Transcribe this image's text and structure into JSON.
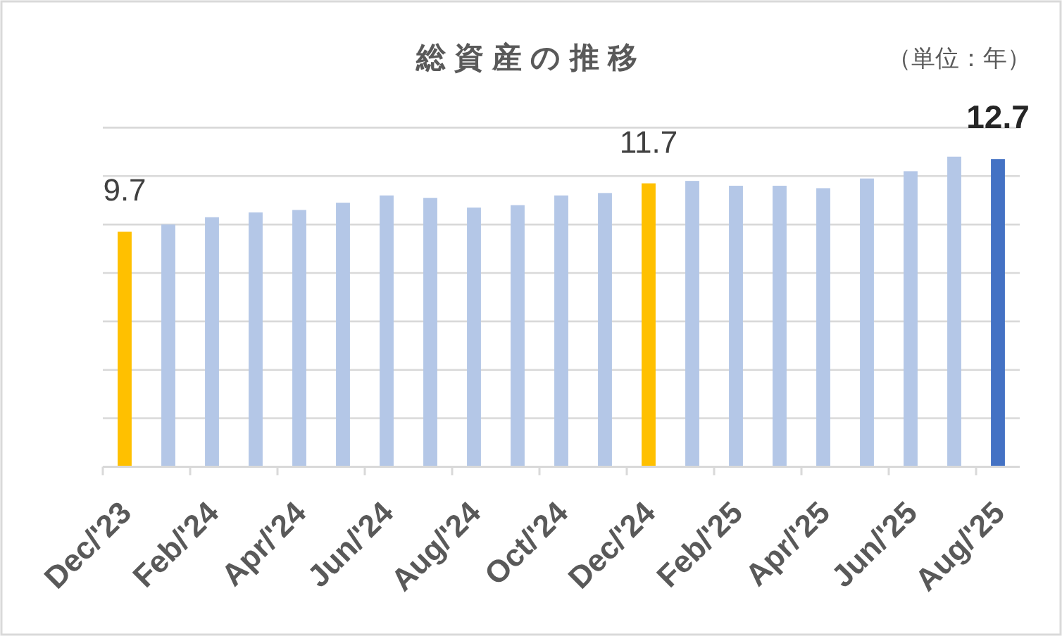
{
  "chart_data": {
    "type": "bar",
    "title": "総資産の推移",
    "annotations": [
      "（単位：年）"
    ],
    "categories": [
      "Dec/'23",
      null,
      "Feb/'24",
      null,
      "Apr/'24",
      null,
      "Jun/'24",
      null,
      "Aug/'24",
      null,
      "Oct/'24",
      null,
      "Dec/'24",
      null,
      "Feb/'25",
      null,
      "Apr/'25",
      null,
      "Jun/'25",
      null,
      "Aug/'25"
    ],
    "values": [
      9.7,
      10.0,
      10.3,
      10.5,
      10.6,
      10.9,
      11.2,
      11.1,
      10.7,
      10.8,
      11.2,
      11.3,
      11.7,
      11.8,
      11.6,
      11.6,
      11.5,
      11.9,
      12.2,
      12.8,
      12.7
    ],
    "colors": [
      "#ffc000",
      "#b4c7e7",
      "#b4c7e7",
      "#b4c7e7",
      "#b4c7e7",
      "#b4c7e7",
      "#b4c7e7",
      "#b4c7e7",
      "#b4c7e7",
      "#b4c7e7",
      "#b4c7e7",
      "#b4c7e7",
      "#ffc000",
      "#b4c7e7",
      "#b4c7e7",
      "#b4c7e7",
      "#b4c7e7",
      "#b4c7e7",
      "#b4c7e7",
      "#b4c7e7",
      "#4472c4"
    ],
    "value_labels": [
      "9.7",
      null,
      null,
      null,
      null,
      null,
      null,
      null,
      null,
      null,
      null,
      null,
      "11.7",
      null,
      null,
      null,
      null,
      null,
      null,
      null,
      "12.7"
    ],
    "ylim": [
      0,
      14
    ],
    "yticks": [
      {
        "value": 0,
        "label": null
      },
      {
        "value": 2,
        "label": null
      },
      {
        "value": 4,
        "label": null
      },
      {
        "value": 6,
        "label": null
      },
      {
        "value": 8,
        "label": null
      },
      {
        "value": 10,
        "label": null
      },
      {
        "value": 12,
        "label": null
      },
      {
        "value": 14,
        "label": null
      }
    ],
    "grid": "y",
    "tick_labels": "x"
  }
}
